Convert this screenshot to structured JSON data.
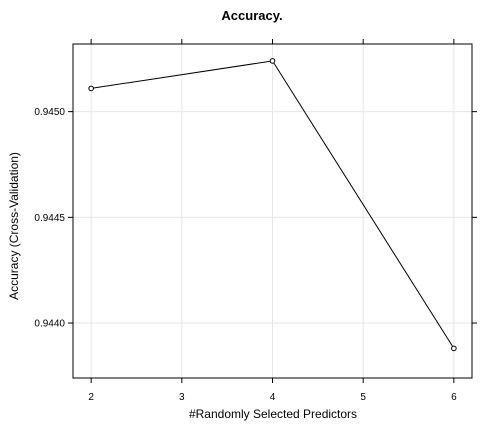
{
  "chart_data": {
    "type": "line",
    "title": "Accuracy.",
    "xlabel": "#Randomly Selected Predictors",
    "ylabel": "Accuracy (Cross-Validation)",
    "x": [
      2,
      4,
      6
    ],
    "series": [
      {
        "values": [
          0.94511,
          0.94524,
          0.94388
        ]
      }
    ],
    "xlim": [
      1.8,
      6.2
    ],
    "ylim": [
      0.94374,
      0.94532
    ],
    "xticks": [
      2,
      3,
      4,
      5,
      6
    ],
    "xtick_labels": [
      "2",
      "3",
      "4",
      "5",
      "6"
    ],
    "yticks": [
      0.944,
      0.9445,
      0.945
    ],
    "ytick_labels": [
      "0.9440",
      "0.9445",
      "0.9450"
    ],
    "grid": true,
    "colors": {
      "line": "#000000",
      "marker_stroke": "#000000",
      "marker_fill": "#ffffff",
      "grid": "#e6e6e6",
      "frame": "#000000"
    }
  }
}
